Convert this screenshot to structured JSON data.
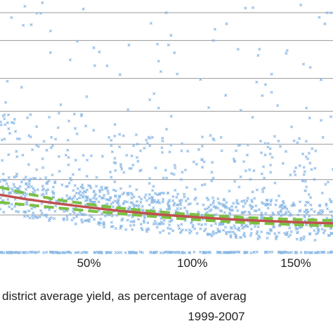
{
  "chart_data": {
    "type": "scatter",
    "xlabel_line1": "district average yield, as percentage of averag",
    "xlabel_line2": "1999-2007",
    "x_ticks": [
      {
        "value": 50,
        "label": "50%"
      },
      {
        "value": 100,
        "label": "100%"
      },
      {
        "value": 150,
        "label": "150%"
      }
    ],
    "xlim": [
      7,
      168
    ],
    "ylim": [
      0,
      10
    ],
    "y_gridlines": [
      1.5,
      2.9,
      4.3,
      5.6,
      6.9,
      8.4,
      9.5
    ],
    "grid": "horizontal",
    "marker_color": "#8ab8e6",
    "curves": [
      {
        "style": "solid",
        "color": "#c0504d",
        "x": [
          7,
          20,
          35,
          50,
          65,
          80,
          95,
          110,
          125,
          140,
          155,
          168
        ],
        "y": [
          2.3,
          2.12,
          1.95,
          1.8,
          1.66,
          1.55,
          1.45,
          1.37,
          1.3,
          1.25,
          1.2,
          1.17
        ]
      },
      {
        "style": "dashed-upper",
        "color": "#7ac143",
        "x": [
          7,
          20,
          35,
          50,
          65,
          80,
          95,
          110,
          125,
          140,
          155,
          168
        ],
        "y": [
          2.6,
          2.34,
          2.1,
          1.92,
          1.77,
          1.65,
          1.55,
          1.47,
          1.4,
          1.35,
          1.31,
          1.28
        ]
      },
      {
        "style": "dashed-lower",
        "color": "#7ac143",
        "x": [
          7,
          20,
          35,
          50,
          65,
          80,
          95,
          110,
          125,
          140,
          155,
          168
        ],
        "y": [
          2.0,
          1.9,
          1.78,
          1.66,
          1.55,
          1.45,
          1.35,
          1.27,
          1.2,
          1.15,
          1.1,
          1.06
        ]
      }
    ],
    "scatter_seed": 7,
    "scatter_count": 1400
  }
}
